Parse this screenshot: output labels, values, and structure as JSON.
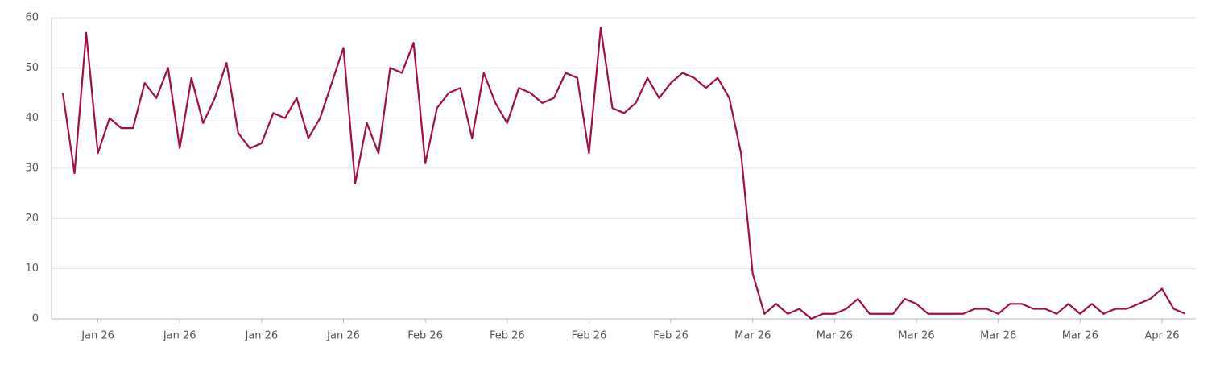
{
  "chart_data": {
    "type": "line",
    "categories": [
      null,
      null,
      null,
      "Jan 26",
      null,
      null,
      null,
      null,
      null,
      null,
      "Jan 26",
      null,
      null,
      null,
      null,
      null,
      null,
      "Jan 26",
      null,
      null,
      null,
      null,
      null,
      null,
      "Jan 26",
      null,
      null,
      null,
      null,
      null,
      null,
      "Feb 26",
      null,
      null,
      null,
      null,
      null,
      null,
      "Feb 26",
      null,
      null,
      null,
      null,
      null,
      null,
      "Feb 26",
      null,
      null,
      null,
      null,
      null,
      null,
      "Feb 26",
      null,
      null,
      null,
      null,
      null,
      null,
      "Mar 26",
      null,
      null,
      null,
      null,
      null,
      null,
      "Mar 26",
      null,
      null,
      null,
      null,
      null,
      null,
      "Mar 26",
      null,
      null,
      null,
      null,
      null,
      null,
      "Mar 26",
      null,
      null,
      null,
      null,
      null,
      null,
      "Mar 26",
      null,
      null,
      null,
      null,
      null,
      null,
      "Apr 26",
      null,
      null
    ],
    "values": [
      45,
      29,
      57,
      33,
      40,
      38,
      38,
      47,
      44,
      50,
      34,
      48,
      39,
      44,
      51,
      37,
      34,
      35,
      41,
      40,
      44,
      36,
      40,
      47,
      54,
      27,
      39,
      33,
      50,
      49,
      55,
      31,
      42,
      45,
      46,
      36,
      49,
      43,
      39,
      46,
      45,
      43,
      44,
      49,
      48,
      33,
      58,
      42,
      41,
      43,
      48,
      44,
      47,
      49,
      48,
      46,
      48,
      44,
      33,
      9,
      1,
      3,
      1,
      2,
      0,
      1,
      1,
      2,
      4,
      1,
      1,
      1,
      4,
      3,
      1,
      1,
      1,
      1,
      2,
      2,
      1,
      3,
      3,
      2,
      2,
      1,
      3,
      1,
      3,
      1,
      2,
      2,
      3,
      4,
      6,
      2,
      1
    ],
    "color": "#a50e45",
    "ylim": [
      0,
      60
    ],
    "yticks": [
      0,
      10,
      20,
      30,
      40,
      50,
      60
    ],
    "grid": true
  }
}
